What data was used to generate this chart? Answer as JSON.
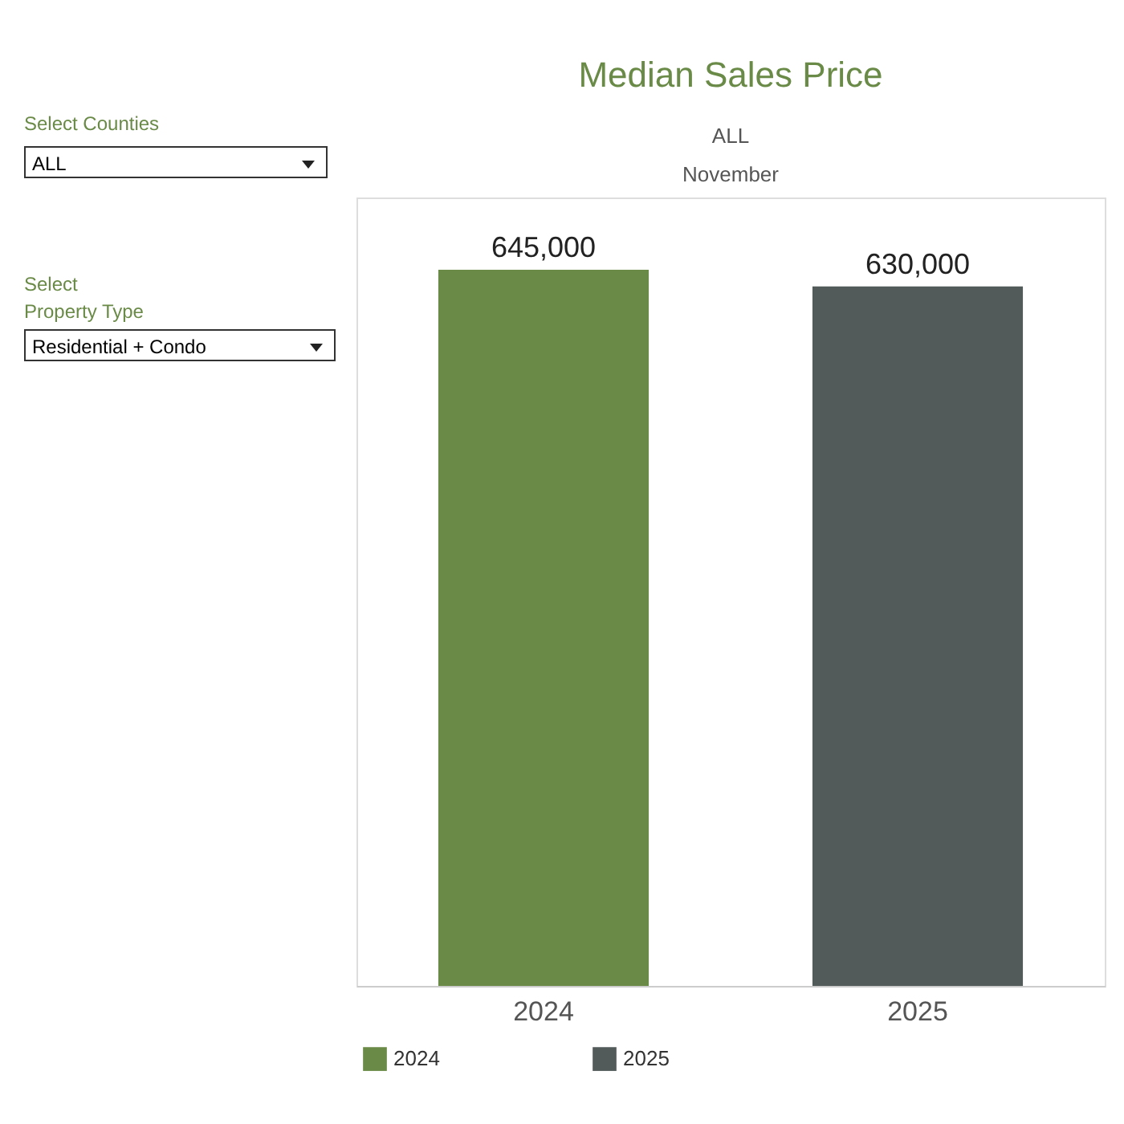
{
  "chart_data": {
    "type": "bar",
    "title": "Median Sales Price",
    "annotations": [
      "Select Counties",
      "ALL",
      "Select\nProperty Type",
      "Residential + Condo",
      "ALL",
      "November"
    ],
    "categories": [
      "2024",
      "2025"
    ],
    "series": [
      {
        "name": "2024",
        "color": "#6a8a47",
        "values": [
          645000,
          null
        ],
        "value_labels": [
          "645,000",
          null
        ]
      },
      {
        "name": "2025",
        "color": "#535b5a",
        "values": [
          null,
          630000
        ],
        "value_labels": [
          null,
          "630,000"
        ]
      }
    ],
    "legend": "bottom left"
  }
}
